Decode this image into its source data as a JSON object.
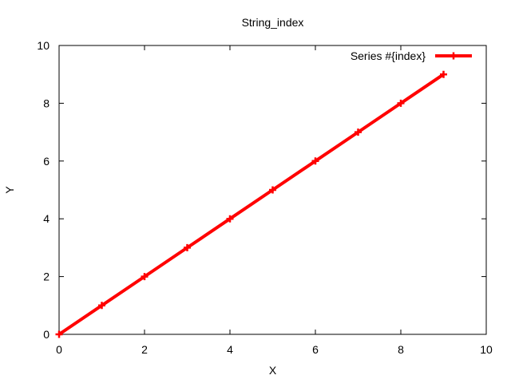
{
  "chart_data": {
    "type": "line",
    "title": "String_index",
    "xlabel": "X",
    "ylabel": "Y",
    "xlim": [
      0,
      10
    ],
    "ylim": [
      0,
      10
    ],
    "x_ticks": [
      0,
      2,
      4,
      6,
      8,
      10
    ],
    "y_ticks": [
      0,
      2,
      4,
      6,
      8,
      10
    ],
    "grid": false,
    "legend_position": "top-right",
    "series": [
      {
        "name": "Series #{index}",
        "color": "#ff0000",
        "marker": "plus",
        "x": [
          0,
          1,
          2,
          3,
          4,
          5,
          6,
          7,
          8,
          9
        ],
        "y": [
          0,
          1,
          2,
          3,
          4,
          5,
          6,
          7,
          8,
          9
        ]
      }
    ]
  }
}
